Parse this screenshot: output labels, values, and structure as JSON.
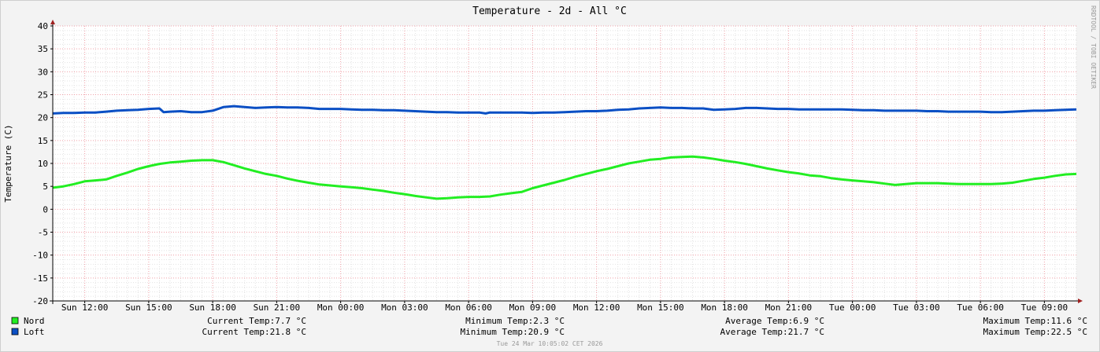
{
  "chart_data": {
    "type": "line",
    "title": "Temperature - 2d - All °C",
    "ylabel": "Temperature (C)",
    "xlabel": "",
    "ylim": [
      -20,
      40
    ],
    "y_ticks": [
      40,
      35,
      30,
      25,
      20,
      15,
      10,
      5,
      0,
      -5,
      -10,
      -15,
      -20
    ],
    "x_range_hours": [
      0,
      48
    ],
    "x_ticks": [
      {
        "label": "Sun 12:00",
        "h": 1.5
      },
      {
        "label": "Sun 15:00",
        "h": 4.5
      },
      {
        "label": "Sun 18:00",
        "h": 7.5
      },
      {
        "label": "Sun 21:00",
        "h": 10.5
      },
      {
        "label": "Mon 00:00",
        "h": 13.5
      },
      {
        "label": "Mon 03:00",
        "h": 16.5
      },
      {
        "label": "Mon 06:00",
        "h": 19.5
      },
      {
        "label": "Mon 09:00",
        "h": 22.5
      },
      {
        "label": "Mon 12:00",
        "h": 25.5
      },
      {
        "label": "Mon 15:00",
        "h": 28.5
      },
      {
        "label": "Mon 18:00",
        "h": 31.5
      },
      {
        "label": "Mon 21:00",
        "h": 34.5
      },
      {
        "label": "Tue 00:00",
        "h": 37.5
      },
      {
        "label": "Tue 03:00",
        "h": 40.5
      },
      {
        "label": "Tue 06:00",
        "h": 43.5
      },
      {
        "label": "Tue 09:00",
        "h": 46.5
      }
    ],
    "grid": true,
    "legend_position": "bottom-left",
    "series": [
      {
        "name": "Nord",
        "color": "#22ee22",
        "points": [
          [
            0,
            4.7
          ],
          [
            0.5,
            5.0
          ],
          [
            1,
            5.5
          ],
          [
            1.5,
            6.1
          ],
          [
            2,
            6.3
          ],
          [
            2.5,
            6.5
          ],
          [
            3,
            7.3
          ],
          [
            3.5,
            8.0
          ],
          [
            4,
            8.8
          ],
          [
            4.5,
            9.4
          ],
          [
            5,
            9.9
          ],
          [
            5.5,
            10.2
          ],
          [
            6,
            10.4
          ],
          [
            6.5,
            10.6
          ],
          [
            7,
            10.7
          ],
          [
            7.5,
            10.7
          ],
          [
            8,
            10.3
          ],
          [
            8.5,
            9.6
          ],
          [
            9,
            8.9
          ],
          [
            9.5,
            8.3
          ],
          [
            10,
            7.7
          ],
          [
            10.5,
            7.3
          ],
          [
            11,
            6.7
          ],
          [
            11.5,
            6.2
          ],
          [
            12,
            5.8
          ],
          [
            12.5,
            5.4
          ],
          [
            13,
            5.2
          ],
          [
            13.5,
            5.0
          ],
          [
            14,
            4.8
          ],
          [
            14.5,
            4.6
          ],
          [
            15,
            4.3
          ],
          [
            15.5,
            4.0
          ],
          [
            16,
            3.6
          ],
          [
            16.5,
            3.3
          ],
          [
            17,
            2.9
          ],
          [
            17.5,
            2.6
          ],
          [
            18,
            2.3
          ],
          [
            18.5,
            2.4
          ],
          [
            19,
            2.6
          ],
          [
            19.5,
            2.7
          ],
          [
            20,
            2.7
          ],
          [
            20.5,
            2.8
          ],
          [
            21,
            3.2
          ],
          [
            21.5,
            3.5
          ],
          [
            22,
            3.8
          ],
          [
            22.5,
            4.6
          ],
          [
            23,
            5.2
          ],
          [
            23.5,
            5.8
          ],
          [
            24,
            6.4
          ],
          [
            24.5,
            7.1
          ],
          [
            25,
            7.7
          ],
          [
            25.5,
            8.3
          ],
          [
            26,
            8.8
          ],
          [
            26.5,
            9.4
          ],
          [
            27,
            10.0
          ],
          [
            27.5,
            10.4
          ],
          [
            28,
            10.8
          ],
          [
            28.5,
            11.0
          ],
          [
            29,
            11.3
          ],
          [
            29.5,
            11.4
          ],
          [
            30,
            11.5
          ],
          [
            30.5,
            11.3
          ],
          [
            31,
            11.0
          ],
          [
            31.5,
            10.6
          ],
          [
            32,
            10.3
          ],
          [
            32.5,
            9.9
          ],
          [
            33,
            9.4
          ],
          [
            33.5,
            8.9
          ],
          [
            34,
            8.5
          ],
          [
            34.5,
            8.1
          ],
          [
            35,
            7.8
          ],
          [
            35.5,
            7.4
          ],
          [
            36,
            7.2
          ],
          [
            36.5,
            6.8
          ],
          [
            37,
            6.5
          ],
          [
            37.5,
            6.3
          ],
          [
            38,
            6.1
          ],
          [
            38.5,
            5.9
          ],
          [
            39,
            5.6
          ],
          [
            39.5,
            5.3
          ],
          [
            40,
            5.5
          ],
          [
            40.5,
            5.7
          ],
          [
            41,
            5.7
          ],
          [
            41.5,
            5.7
          ],
          [
            42,
            5.6
          ],
          [
            42.5,
            5.5
          ],
          [
            43,
            5.5
          ],
          [
            43.5,
            5.5
          ],
          [
            44,
            5.5
          ],
          [
            44.5,
            5.6
          ],
          [
            45,
            5.8
          ],
          [
            45.5,
            6.2
          ],
          [
            46,
            6.6
          ],
          [
            46.5,
            6.9
          ],
          [
            47,
            7.3
          ],
          [
            47.5,
            7.6
          ],
          [
            48,
            7.7
          ]
        ]
      },
      {
        "name": "Loft",
        "color": "#0b4fc4",
        "points": [
          [
            0,
            20.9
          ],
          [
            0.5,
            21.0
          ],
          [
            1,
            21.0
          ],
          [
            1.5,
            21.1
          ],
          [
            2,
            21.1
          ],
          [
            2.5,
            21.3
          ],
          [
            3,
            21.5
          ],
          [
            3.5,
            21.6
          ],
          [
            4,
            21.7
          ],
          [
            4.5,
            21.9
          ],
          [
            5,
            22.0
          ],
          [
            5.2,
            21.2
          ],
          [
            5.5,
            21.3
          ],
          [
            6,
            21.4
          ],
          [
            6.5,
            21.2
          ],
          [
            7,
            21.2
          ],
          [
            7.5,
            21.5
          ],
          [
            8,
            22.3
          ],
          [
            8.5,
            22.5
          ],
          [
            9,
            22.3
          ],
          [
            9.5,
            22.1
          ],
          [
            10,
            22.2
          ],
          [
            10.5,
            22.3
          ],
          [
            11,
            22.2
          ],
          [
            11.5,
            22.2
          ],
          [
            12,
            22.1
          ],
          [
            12.5,
            21.9
          ],
          [
            13,
            21.9
          ],
          [
            13.5,
            21.9
          ],
          [
            14,
            21.8
          ],
          [
            14.5,
            21.7
          ],
          [
            15,
            21.7
          ],
          [
            15.5,
            21.6
          ],
          [
            16,
            21.6
          ],
          [
            16.5,
            21.5
          ],
          [
            17,
            21.4
          ],
          [
            17.5,
            21.3
          ],
          [
            18,
            21.2
          ],
          [
            18.5,
            21.2
          ],
          [
            19,
            21.1
          ],
          [
            19.5,
            21.1
          ],
          [
            20,
            21.1
          ],
          [
            20.3,
            20.9
          ],
          [
            20.5,
            21.1
          ],
          [
            21,
            21.1
          ],
          [
            21.5,
            21.1
          ],
          [
            22,
            21.1
          ],
          [
            22.5,
            21.0
          ],
          [
            23,
            21.1
          ],
          [
            23.5,
            21.1
          ],
          [
            24,
            21.2
          ],
          [
            24.5,
            21.3
          ],
          [
            25,
            21.4
          ],
          [
            25.5,
            21.4
          ],
          [
            26,
            21.5
          ],
          [
            26.5,
            21.7
          ],
          [
            27,
            21.8
          ],
          [
            27.5,
            22.0
          ],
          [
            28,
            22.1
          ],
          [
            28.5,
            22.2
          ],
          [
            29,
            22.1
          ],
          [
            29.5,
            22.1
          ],
          [
            30,
            22.0
          ],
          [
            30.5,
            22.0
          ],
          [
            31,
            21.7
          ],
          [
            31.5,
            21.8
          ],
          [
            32,
            21.9
          ],
          [
            32.5,
            22.1
          ],
          [
            33,
            22.1
          ],
          [
            33.5,
            22.0
          ],
          [
            34,
            21.9
          ],
          [
            34.5,
            21.9
          ],
          [
            35,
            21.8
          ],
          [
            35.5,
            21.8
          ],
          [
            36,
            21.8
          ],
          [
            36.5,
            21.8
          ],
          [
            37,
            21.8
          ],
          [
            37.5,
            21.7
          ],
          [
            38,
            21.6
          ],
          [
            38.5,
            21.6
          ],
          [
            39,
            21.5
          ],
          [
            39.5,
            21.5
          ],
          [
            40,
            21.5
          ],
          [
            40.5,
            21.5
          ],
          [
            41,
            21.4
          ],
          [
            41.5,
            21.4
          ],
          [
            42,
            21.3
          ],
          [
            42.5,
            21.3
          ],
          [
            43,
            21.3
          ],
          [
            43.5,
            21.3
          ],
          [
            44,
            21.2
          ],
          [
            44.5,
            21.2
          ],
          [
            45,
            21.3
          ],
          [
            45.5,
            21.4
          ],
          [
            46,
            21.5
          ],
          [
            46.5,
            21.5
          ],
          [
            47,
            21.6
          ],
          [
            47.5,
            21.7
          ],
          [
            48,
            21.8
          ]
        ]
      }
    ],
    "legend_rows": [
      {
        "name": "Nord",
        "color": "#22ee22",
        "current": "Current Temp:7.7 °C",
        "minimum": "Minimum Temp:2.3 °C",
        "average": "Average Temp:6.9 °C",
        "maximum": "Maximum Temp:11.6 °C"
      },
      {
        "name": "Loft",
        "color": "#0b4fc4",
        "current": "Current Temp:21.8 °C",
        "minimum": "Minimum Temp:20.9 °C",
        "average": "Average Temp:21.7 °C",
        "maximum": "Maximum Temp:22.5 °C"
      }
    ],
    "watermark": "RRDTOOL / TOBI OETIKER",
    "footer": "Tue 24 Mar 10:05:02 CET 2026"
  }
}
